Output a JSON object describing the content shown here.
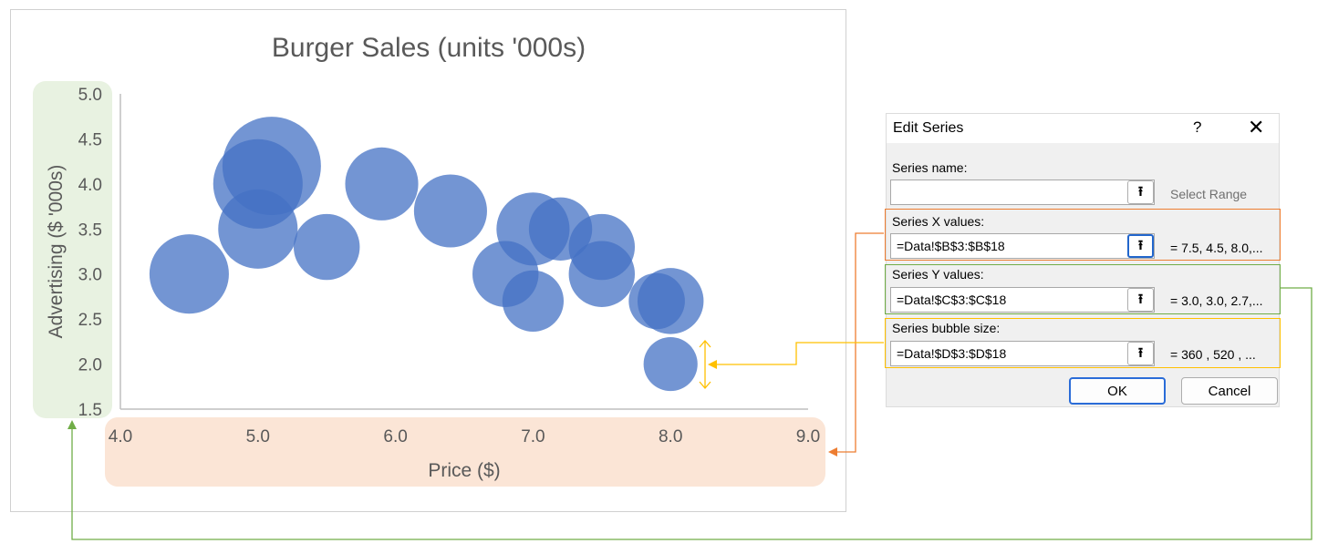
{
  "chart": {
    "title": "Burger Sales (units '000s)",
    "xlabel": "Price ($)",
    "ylabel": "Advertising ($ '000s)",
    "x_ticks": [
      "4.0",
      "5.0",
      "6.0",
      "7.0",
      "8.0",
      "9.0"
    ],
    "y_ticks": [
      "5.0",
      "4.5",
      "4.0",
      "3.5",
      "3.0",
      "2.5",
      "2.0",
      "1.5"
    ]
  },
  "chart_data": {
    "type": "scatter",
    "variant": "bubble",
    "title": "Burger Sales (units '000s)",
    "xlabel": "Price ($)",
    "ylabel": "Advertising ($ '000s)",
    "xlim": [
      4.0,
      9.0
    ],
    "ylim": [
      1.5,
      5.0
    ],
    "grid": false,
    "bubble_color": "#4472c4",
    "points": [
      {
        "x": 7.5,
        "y": 3.0,
        "size": 360
      },
      {
        "x": 4.5,
        "y": 3.0,
        "size": 520
      },
      {
        "x": 8.0,
        "y": 2.7,
        "size": 360
      },
      {
        "x": 5.0,
        "y": 3.5,
        "size": 520
      },
      {
        "x": 5.1,
        "y": 4.2,
        "size": 800
      },
      {
        "x": 5.0,
        "y": 4.0,
        "size": 660
      },
      {
        "x": 5.5,
        "y": 3.3,
        "size": 360
      },
      {
        "x": 5.9,
        "y": 4.0,
        "size": 440
      },
      {
        "x": 6.4,
        "y": 3.7,
        "size": 440
      },
      {
        "x": 7.0,
        "y": 3.5,
        "size": 440
      },
      {
        "x": 7.2,
        "y": 3.5,
        "size": 330
      },
      {
        "x": 7.5,
        "y": 3.3,
        "size": 360
      },
      {
        "x": 6.8,
        "y": 3.0,
        "size": 360
      },
      {
        "x": 7.0,
        "y": 2.7,
        "size": 310
      },
      {
        "x": 7.9,
        "y": 2.7,
        "size": 260
      },
      {
        "x": 8.0,
        "y": 2.0,
        "size": 240
      }
    ]
  },
  "dialog": {
    "title": "Edit Series",
    "help": "?",
    "close": "✕",
    "series_name": {
      "label": "Series name:",
      "value": "",
      "hint": "Select Range"
    },
    "x_values": {
      "label": "Series X values:",
      "value": "=Data!$B$3:$B$18",
      "preview": "= 7.5, 4.5, 8.0,..."
    },
    "y_values": {
      "label": "Series Y values:",
      "value": "=Data!$C$3:$C$18",
      "preview": "= 3.0, 3.0, 2.7,..."
    },
    "bubble_size": {
      "label": "Series bubble size:",
      "value": "=Data!$D$3:$D$18",
      "preview": "=  360 ,  520 , ..."
    },
    "ok": "OK",
    "cancel": "Cancel",
    "range_icon": "range-select-icon"
  },
  "colors": {
    "bubble": "#4472c4",
    "y_highlight": "#e8f2e1",
    "x_highlight": "#fbe5d6",
    "x_connector": "#ed7d31",
    "y_connector": "#70ad47",
    "size_connector": "#ffc000"
  }
}
